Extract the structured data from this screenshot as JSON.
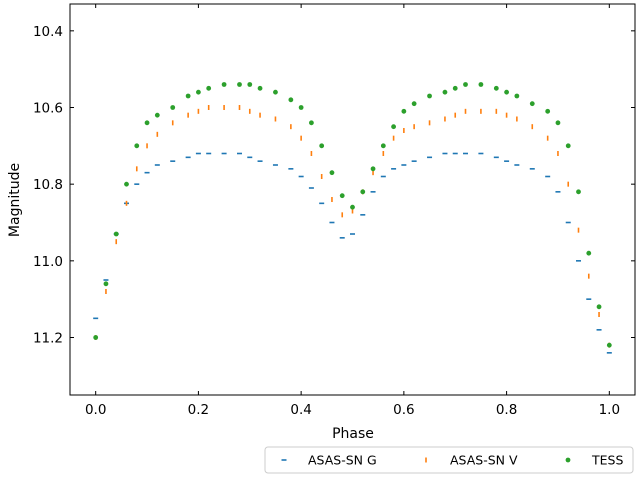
{
  "chart_data": {
    "type": "scatter",
    "xlabel": "Phase",
    "ylabel": "Magnitude",
    "xlim": [
      -0.05,
      1.05
    ],
    "ylim": [
      11.35,
      10.33
    ],
    "y_inverted": true,
    "grid": false,
    "legend_placement": "below-right",
    "xticks": [
      0.0,
      0.2,
      0.4,
      0.6,
      0.8,
      1.0
    ],
    "xtick_labels": [
      "0.0",
      "0.2",
      "0.4",
      "0.6",
      "0.8",
      "1.0"
    ],
    "yticks": [
      10.4,
      10.6,
      10.8,
      11.0,
      11.2
    ],
    "ytick_labels": [
      "10.4",
      "10.6",
      "10.8",
      "11.0",
      "11.2"
    ],
    "series": [
      {
        "name": "ASAS-SN G",
        "color": "#1f77b4",
        "marker": "hline",
        "x": [
          0.0,
          0.02,
          0.04,
          0.06,
          0.08,
          0.1,
          0.12,
          0.15,
          0.18,
          0.2,
          0.22,
          0.25,
          0.28,
          0.3,
          0.32,
          0.35,
          0.38,
          0.4,
          0.42,
          0.44,
          0.46,
          0.48,
          0.5,
          0.52,
          0.54,
          0.56,
          0.58,
          0.6,
          0.62,
          0.65,
          0.68,
          0.7,
          0.72,
          0.75,
          0.78,
          0.8,
          0.82,
          0.85,
          0.88,
          0.9,
          0.92,
          0.94,
          0.96,
          0.98,
          1.0
        ],
        "y": [
          11.15,
          11.05,
          10.93,
          10.85,
          10.8,
          10.77,
          10.75,
          10.74,
          10.73,
          10.72,
          10.72,
          10.72,
          10.72,
          10.73,
          10.74,
          10.75,
          10.76,
          10.78,
          10.81,
          10.85,
          10.9,
          10.94,
          10.93,
          10.88,
          10.82,
          10.78,
          10.76,
          10.75,
          10.74,
          10.73,
          10.72,
          10.72,
          10.72,
          10.72,
          10.73,
          10.74,
          10.75,
          10.76,
          10.78,
          10.82,
          10.9,
          11.0,
          11.1,
          11.18,
          11.24
        ]
      },
      {
        "name": "ASAS-SN V",
        "color": "#ff7f0e",
        "marker": "vline",
        "x": [
          0.0,
          0.02,
          0.04,
          0.06,
          0.08,
          0.1,
          0.12,
          0.15,
          0.18,
          0.2,
          0.22,
          0.25,
          0.28,
          0.3,
          0.32,
          0.35,
          0.38,
          0.4,
          0.42,
          0.44,
          0.46,
          0.48,
          0.5,
          0.52,
          0.54,
          0.56,
          0.58,
          0.6,
          0.62,
          0.65,
          0.68,
          0.7,
          0.72,
          0.75,
          0.78,
          0.8,
          0.82,
          0.85,
          0.88,
          0.9,
          0.92,
          0.94,
          0.96,
          0.98,
          1.0
        ],
        "y": [
          11.2,
          11.08,
          10.95,
          10.85,
          10.76,
          10.7,
          10.67,
          10.64,
          10.62,
          10.61,
          10.6,
          10.6,
          10.6,
          10.61,
          10.62,
          10.63,
          10.65,
          10.68,
          10.72,
          10.78,
          10.84,
          10.88,
          10.87,
          10.82,
          10.77,
          10.72,
          10.68,
          10.66,
          10.65,
          10.64,
          10.63,
          10.62,
          10.61,
          10.61,
          10.61,
          10.62,
          10.63,
          10.65,
          10.68,
          10.72,
          10.8,
          10.92,
          11.04,
          11.14,
          11.22
        ]
      },
      {
        "name": "TESS",
        "color": "#2ca02c",
        "marker": "dot",
        "x": [
          0.0,
          0.02,
          0.04,
          0.06,
          0.08,
          0.1,
          0.12,
          0.15,
          0.18,
          0.2,
          0.22,
          0.25,
          0.28,
          0.3,
          0.32,
          0.35,
          0.38,
          0.4,
          0.42,
          0.44,
          0.46,
          0.48,
          0.5,
          0.52,
          0.54,
          0.56,
          0.58,
          0.6,
          0.62,
          0.65,
          0.68,
          0.7,
          0.72,
          0.75,
          0.78,
          0.8,
          0.82,
          0.85,
          0.88,
          0.9,
          0.92,
          0.94,
          0.96,
          0.98,
          1.0
        ],
        "y": [
          11.2,
          11.06,
          10.93,
          10.8,
          10.7,
          10.64,
          10.62,
          10.6,
          10.57,
          10.56,
          10.55,
          10.54,
          10.54,
          10.54,
          10.55,
          10.56,
          10.58,
          10.6,
          10.64,
          10.7,
          10.77,
          10.83,
          10.86,
          10.82,
          10.76,
          10.7,
          10.65,
          10.61,
          10.59,
          10.57,
          10.56,
          10.55,
          10.54,
          10.54,
          10.55,
          10.56,
          10.57,
          10.59,
          10.61,
          10.64,
          10.7,
          10.82,
          10.98,
          11.12,
          11.22
        ]
      }
    ]
  }
}
